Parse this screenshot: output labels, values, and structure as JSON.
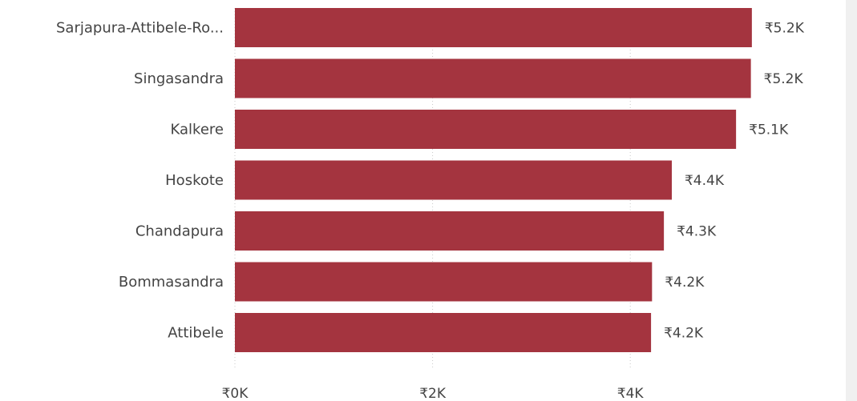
{
  "chart_data": {
    "type": "bar",
    "orientation": "horizontal",
    "categories": [
      "Sarjapura-Attibele-Ro...",
      "Singasandra",
      "Kalkere",
      "Hoskote",
      "Chandapura",
      "Bommasandra",
      "Attibele"
    ],
    "values": [
      5230,
      5220,
      5070,
      4420,
      4340,
      4220,
      4210
    ],
    "data_labels": [
      "₹5.2K",
      "₹5.2K",
      "₹5.1K",
      "₹4.4K",
      "₹4.3K",
      "₹4.2K",
      "₹4.2K"
    ],
    "x_ticks": [
      0,
      2000,
      4000
    ],
    "x_tick_labels": [
      "₹0K",
      "₹2K",
      "₹4K"
    ],
    "xlim": [
      0,
      6000
    ],
    "bar_color": "#a4343f",
    "grid": true,
    "title": "",
    "xlabel": "",
    "ylabel": ""
  }
}
